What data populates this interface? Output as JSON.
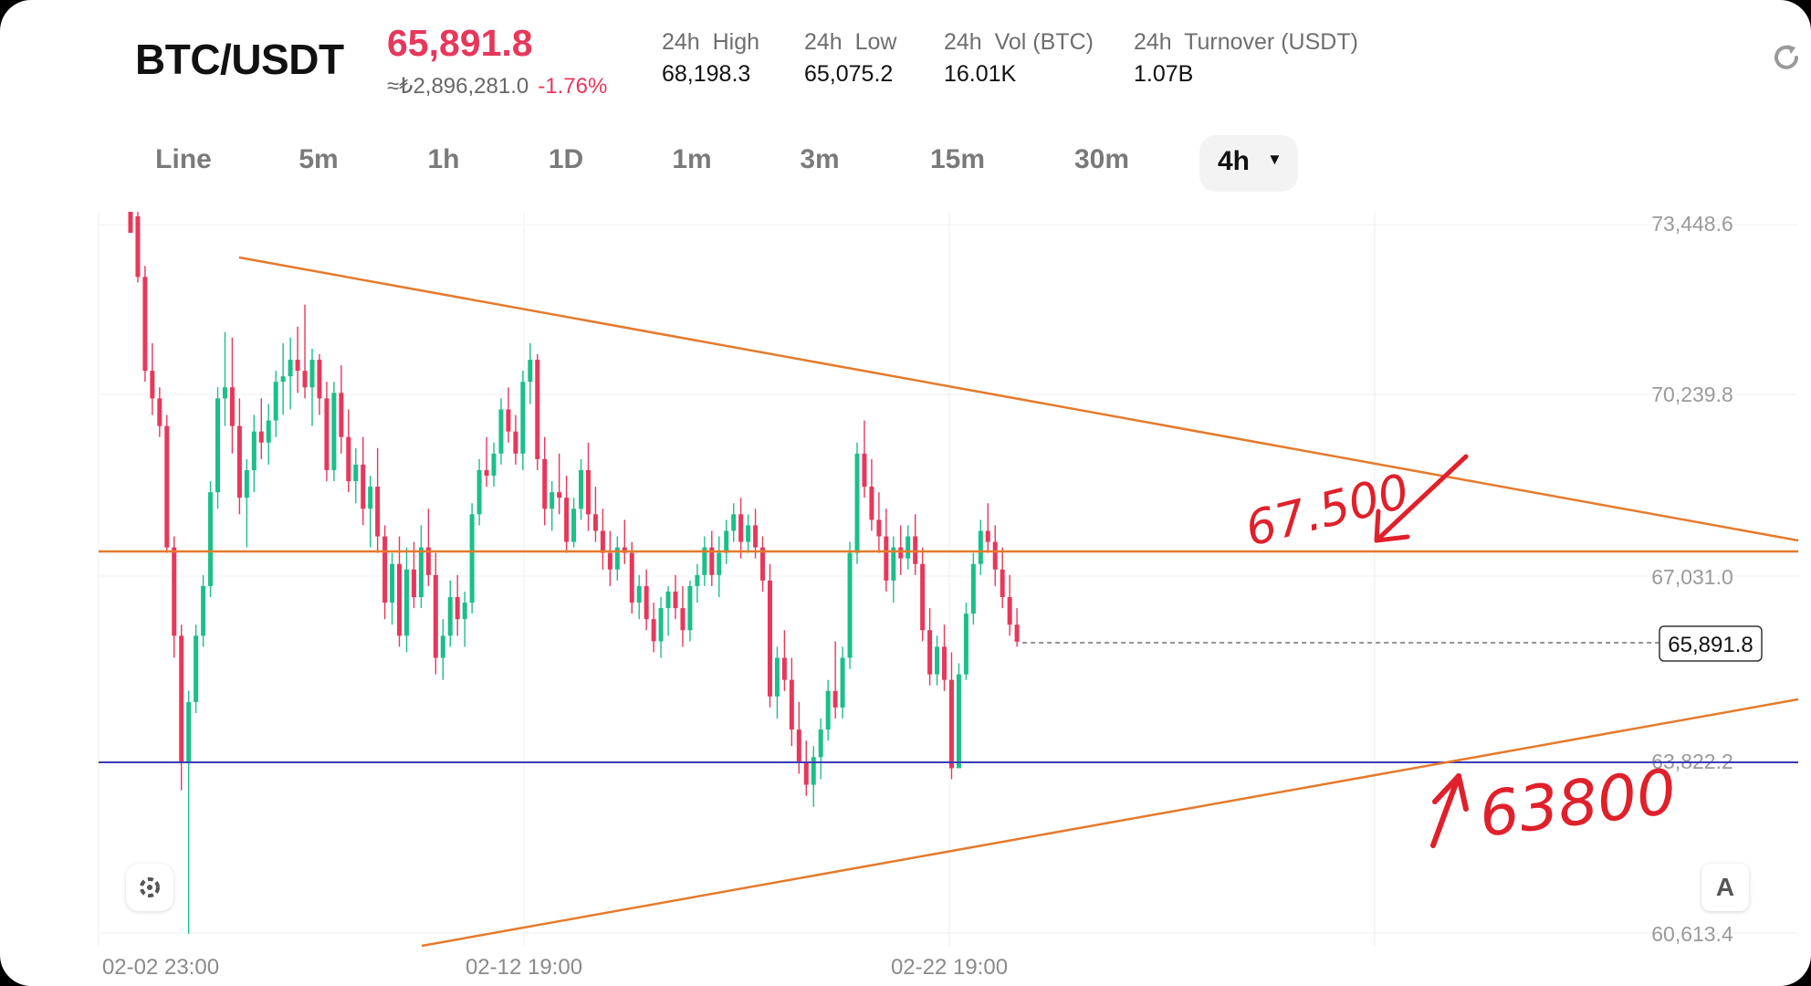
{
  "header": {
    "pair": "BTC/USDT",
    "price": "65,891.8",
    "fiat_price": "≈₺2,896,281.0",
    "change": "-1.76%",
    "stats": [
      {
        "label": "24h  High",
        "value": "68,198.3"
      },
      {
        "label": "24h  Low",
        "value": "65,075.2"
      },
      {
        "label": "24h  Vol (BTC)",
        "value": "16.01K"
      },
      {
        "label": "24h  Turnover (USDT)",
        "value": "1.07B"
      }
    ],
    "refresh_icon": "refresh-icon"
  },
  "tabs": [
    "Line",
    "5m",
    "1h",
    "1D",
    "1m",
    "3m",
    "15m",
    "30m"
  ],
  "active_tab": "4h",
  "colors": {
    "up": "#1bbf8a",
    "down": "#e8375b",
    "trendline": "#e47a2c",
    "support": "#3a3ab8",
    "annotation": "#e0202a"
  },
  "chart_data": {
    "type": "candlestick",
    "y_ticks": [
      "73,448.6",
      "70,239.8",
      "67,031.0",
      "63,822.2",
      "60,613.4"
    ],
    "ylim": [
      60613.4,
      73448.6
    ],
    "x_ticks": [
      "02-02 23:00",
      "02-12 19:00",
      "02-22 19:00"
    ],
    "last_price_label": "65,891.8",
    "horizontal_lines": [
      {
        "price": 67500,
        "color": "#e47a2c"
      },
      {
        "price": 63822.2,
        "color": "#3a3ab8"
      }
    ],
    "annotations": [
      "67.500",
      "63800"
    ],
    "candles": [
      [
        0,
        73900,
        73900,
        73300,
        73300
      ],
      [
        1,
        73600,
        73700,
        72400,
        72500
      ],
      [
        2,
        72500,
        72700,
        70600,
        70800
      ],
      [
        3,
        70800,
        71300,
        70000,
        70300
      ],
      [
        4,
        70300,
        70500,
        69600,
        69800
      ],
      [
        5,
        69800,
        70000,
        67500,
        67600
      ],
      [
        6,
        67600,
        67800,
        65600,
        66000
      ],
      [
        7,
        66000,
        66200,
        63200,
        63700
      ],
      [
        8,
        63700,
        65000,
        60600,
        64800
      ],
      [
        9,
        64800,
        66200,
        64600,
        66000
      ],
      [
        10,
        66000,
        67100,
        65800,
        66900
      ],
      [
        11,
        66900,
        68800,
        66700,
        68600
      ],
      [
        12,
        68600,
        70500,
        68300,
        70300
      ],
      [
        13,
        70300,
        71500,
        69800,
        70500
      ],
      [
        14,
        70500,
        71400,
        69300,
        69800
      ],
      [
        15,
        69800,
        70300,
        68200,
        68500
      ],
      [
        16,
        68500,
        69200,
        67600,
        69000
      ],
      [
        17,
        69000,
        70000,
        68600,
        69700
      ],
      [
        18,
        69700,
        70300,
        69200,
        69500
      ],
      [
        19,
        69500,
        70200,
        69100,
        69900
      ],
      [
        20,
        69900,
        70800,
        69600,
        70600
      ],
      [
        21,
        70600,
        71300,
        70000,
        70700
      ],
      [
        22,
        70700,
        71400,
        70100,
        71000
      ],
      [
        23,
        71000,
        71600,
        70400,
        70800
      ],
      [
        24,
        70800,
        72000,
        70300,
        70500
      ],
      [
        25,
        70500,
        71200,
        69800,
        71000
      ],
      [
        26,
        71000,
        71100,
        70000,
        70300
      ],
      [
        27,
        70300,
        70600,
        68800,
        69000
      ],
      [
        28,
        69000,
        70600,
        68800,
        70400
      ],
      [
        29,
        70400,
        70900,
        69300,
        69600
      ],
      [
        30,
        69600,
        70100,
        68600,
        68800
      ],
      [
        31,
        68800,
        69400,
        68400,
        69100
      ],
      [
        32,
        69100,
        69600,
        68000,
        68300
      ],
      [
        33,
        68300,
        68900,
        67600,
        68700
      ],
      [
        34,
        68700,
        69400,
        67500,
        67800
      ],
      [
        35,
        67800,
        68000,
        66300,
        66600
      ],
      [
        36,
        66600,
        67500,
        66200,
        67300
      ],
      [
        37,
        67300,
        67800,
        65800,
        66000
      ],
      [
        38,
        66000,
        67600,
        65700,
        67200
      ],
      [
        39,
        67200,
        67700,
        66500,
        66700
      ],
      [
        40,
        66700,
        68000,
        66500,
        67600
      ],
      [
        41,
        67600,
        68300,
        66900,
        67100
      ],
      [
        42,
        67100,
        67500,
        65300,
        65600
      ],
      [
        43,
        65600,
        66300,
        65200,
        66000
      ],
      [
        44,
        66000,
        67000,
        65800,
        66700
      ],
      [
        45,
        66700,
        67100,
        66000,
        66300
      ],
      [
        46,
        66300,
        66800,
        65800,
        66600
      ],
      [
        47,
        66600,
        68400,
        66400,
        68200
      ],
      [
        48,
        68200,
        69200,
        68000,
        69000
      ],
      [
        49,
        69000,
        69600,
        68700,
        68900
      ],
      [
        50,
        68900,
        69500,
        68700,
        69300
      ],
      [
        51,
        69300,
        70300,
        69100,
        70100
      ],
      [
        52,
        70100,
        70500,
        69500,
        69700
      ],
      [
        53,
        69700,
        70000,
        69100,
        69300
      ],
      [
        54,
        69300,
        70800,
        69000,
        70600
      ],
      [
        55,
        70600,
        71300,
        70200,
        71000
      ],
      [
        56,
        71000,
        71100,
        69000,
        69200
      ],
      [
        57,
        69200,
        69600,
        68000,
        68300
      ],
      [
        58,
        68300,
        68800,
        67900,
        68600
      ],
      [
        59,
        68600,
        69300,
        68200,
        68500
      ],
      [
        60,
        68500,
        68900,
        67500,
        67700
      ],
      [
        61,
        67700,
        68500,
        67600,
        68300
      ],
      [
        62,
        68300,
        69200,
        68100,
        69000
      ],
      [
        63,
        69000,
        69500,
        67900,
        68200
      ],
      [
        64,
        68200,
        68700,
        67700,
        67900
      ],
      [
        65,
        67900,
        68300,
        67200,
        67500
      ],
      [
        66,
        67500,
        67900,
        66900,
        67200
      ],
      [
        67,
        67200,
        67800,
        67000,
        67600
      ],
      [
        68,
        67600,
        68100,
        67300,
        67500
      ],
      [
        69,
        67500,
        67700,
        66400,
        66600
      ],
      [
        70,
        66600,
        67100,
        66300,
        66900
      ],
      [
        71,
        66900,
        67200,
        66100,
        66300
      ],
      [
        72,
        66300,
        66600,
        65700,
        65900
      ],
      [
        73,
        65900,
        66700,
        65600,
        66500
      ],
      [
        74,
        66500,
        66900,
        66000,
        66800
      ],
      [
        75,
        66800,
        67100,
        66300,
        66500
      ],
      [
        76,
        66500,
        66900,
        65800,
        66100
      ],
      [
        77,
        66100,
        67000,
        65900,
        66900
      ],
      [
        78,
        66900,
        67300,
        66600,
        67100
      ],
      [
        79,
        67100,
        67800,
        66900,
        67600
      ],
      [
        80,
        67600,
        67900,
        66900,
        67100
      ],
      [
        81,
        67100,
        67800,
        66700,
        67500
      ],
      [
        82,
        67500,
        68100,
        67300,
        67900
      ],
      [
        83,
        67900,
        68400,
        67700,
        68200
      ],
      [
        84,
        68200,
        68500,
        67400,
        67700
      ],
      [
        85,
        67700,
        68200,
        67500,
        68000
      ],
      [
        86,
        68000,
        68300,
        67400,
        67600
      ],
      [
        87,
        67600,
        67800,
        66800,
        67000
      ],
      [
        88,
        67000,
        67300,
        64700,
        64900
      ],
      [
        89,
        64900,
        65800,
        64500,
        65600
      ],
      [
        90,
        65600,
        66100,
        65000,
        65200
      ],
      [
        91,
        65200,
        65600,
        64000,
        64300
      ],
      [
        92,
        64300,
        64800,
        63500,
        63700
      ],
      [
        93,
        63700,
        64100,
        63100,
        63300
      ],
      [
        94,
        63300,
        64000,
        62900,
        63800
      ],
      [
        95,
        63800,
        64500,
        63400,
        64300
      ],
      [
        96,
        64300,
        65200,
        64100,
        65000
      ],
      [
        97,
        65000,
        65900,
        64500,
        64700
      ],
      [
        98,
        64700,
        65800,
        64500,
        65600
      ],
      [
        99,
        65600,
        67700,
        65400,
        67500
      ],
      [
        100,
        67500,
        69500,
        67300,
        69300
      ],
      [
        101,
        69300,
        69900,
        68500,
        68700
      ],
      [
        102,
        68700,
        69200,
        67900,
        68100
      ],
      [
        103,
        68100,
        68600,
        67500,
        67800
      ],
      [
        104,
        67800,
        68300,
        66800,
        67000
      ],
      [
        105,
        67000,
        67800,
        66600,
        67600
      ],
      [
        106,
        67600,
        68000,
        67100,
        67400
      ],
      [
        107,
        67400,
        68000,
        67200,
        67800
      ],
      [
        108,
        67800,
        68200,
        67100,
        67300
      ],
      [
        109,
        67300,
        67600,
        65900,
        66100
      ],
      [
        110,
        66100,
        66500,
        65100,
        65300
      ],
      [
        111,
        65300,
        66000,
        65100,
        65800
      ],
      [
        112,
        65800,
        66200,
        65000,
        65200
      ],
      [
        113,
        65200,
        65700,
        63400,
        63600
      ],
      [
        114,
        63600,
        65500,
        63600,
        65300
      ],
      [
        115,
        65300,
        66600,
        65200,
        66400
      ],
      [
        116,
        66400,
        67500,
        66200,
        67300
      ],
      [
        117,
        67300,
        68100,
        67100,
        67900
      ],
      [
        118,
        67900,
        68400,
        67500,
        67700
      ],
      [
        119,
        67700,
        68000,
        66900,
        67200
      ],
      [
        120,
        67200,
        67600,
        66500,
        66700
      ],
      [
        121,
        66700,
        67100,
        66000,
        66200
      ],
      [
        122,
        66200,
        66500,
        65800,
        65891.8
      ]
    ]
  }
}
